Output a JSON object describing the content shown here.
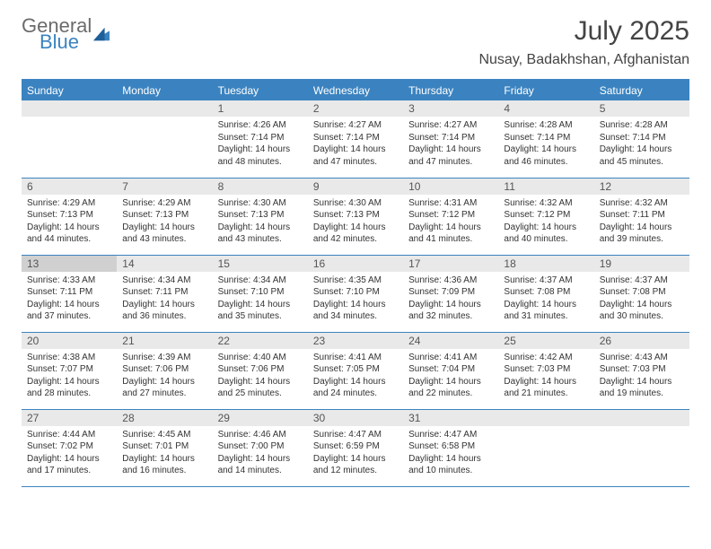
{
  "brand": {
    "general": "General",
    "blue": "Blue"
  },
  "title": "July 2025",
  "location": "Nusay, Badakhshan, Afghanistan",
  "colors": {
    "accent": "#3b83c0",
    "header_text": "#ffffff",
    "daynum_bg": "#e9e9e9",
    "daynum_hl_bg": "#d0d0d0"
  },
  "fonts": {
    "title_size": 30,
    "location_size": 16,
    "dayheader_size": 12,
    "cell_size": 10
  },
  "day_headers": [
    "Sunday",
    "Monday",
    "Tuesday",
    "Wednesday",
    "Thursday",
    "Friday",
    "Saturday"
  ],
  "weeks": [
    [
      null,
      null,
      {
        "n": "1",
        "sr": "4:26 AM",
        "ss": "7:14 PM",
        "dl": "14 hours and 48 minutes."
      },
      {
        "n": "2",
        "sr": "4:27 AM",
        "ss": "7:14 PM",
        "dl": "14 hours and 47 minutes."
      },
      {
        "n": "3",
        "sr": "4:27 AM",
        "ss": "7:14 PM",
        "dl": "14 hours and 47 minutes."
      },
      {
        "n": "4",
        "sr": "4:28 AM",
        "ss": "7:14 PM",
        "dl": "14 hours and 46 minutes."
      },
      {
        "n": "5",
        "sr": "4:28 AM",
        "ss": "7:14 PM",
        "dl": "14 hours and 45 minutes."
      }
    ],
    [
      {
        "n": "6",
        "sr": "4:29 AM",
        "ss": "7:13 PM",
        "dl": "14 hours and 44 minutes."
      },
      {
        "n": "7",
        "sr": "4:29 AM",
        "ss": "7:13 PM",
        "dl": "14 hours and 43 minutes."
      },
      {
        "n": "8",
        "sr": "4:30 AM",
        "ss": "7:13 PM",
        "dl": "14 hours and 43 minutes."
      },
      {
        "n": "9",
        "sr": "4:30 AM",
        "ss": "7:13 PM",
        "dl": "14 hours and 42 minutes."
      },
      {
        "n": "10",
        "sr": "4:31 AM",
        "ss": "7:12 PM",
        "dl": "14 hours and 41 minutes."
      },
      {
        "n": "11",
        "sr": "4:32 AM",
        "ss": "7:12 PM",
        "dl": "14 hours and 40 minutes."
      },
      {
        "n": "12",
        "sr": "4:32 AM",
        "ss": "7:11 PM",
        "dl": "14 hours and 39 minutes."
      }
    ],
    [
      {
        "n": "13",
        "sr": "4:33 AM",
        "ss": "7:11 PM",
        "dl": "14 hours and 37 minutes.",
        "hl": true
      },
      {
        "n": "14",
        "sr": "4:34 AM",
        "ss": "7:11 PM",
        "dl": "14 hours and 36 minutes."
      },
      {
        "n": "15",
        "sr": "4:34 AM",
        "ss": "7:10 PM",
        "dl": "14 hours and 35 minutes."
      },
      {
        "n": "16",
        "sr": "4:35 AM",
        "ss": "7:10 PM",
        "dl": "14 hours and 34 minutes."
      },
      {
        "n": "17",
        "sr": "4:36 AM",
        "ss": "7:09 PM",
        "dl": "14 hours and 32 minutes."
      },
      {
        "n": "18",
        "sr": "4:37 AM",
        "ss": "7:08 PM",
        "dl": "14 hours and 31 minutes."
      },
      {
        "n": "19",
        "sr": "4:37 AM",
        "ss": "7:08 PM",
        "dl": "14 hours and 30 minutes."
      }
    ],
    [
      {
        "n": "20",
        "sr": "4:38 AM",
        "ss": "7:07 PM",
        "dl": "14 hours and 28 minutes."
      },
      {
        "n": "21",
        "sr": "4:39 AM",
        "ss": "7:06 PM",
        "dl": "14 hours and 27 minutes."
      },
      {
        "n": "22",
        "sr": "4:40 AM",
        "ss": "7:06 PM",
        "dl": "14 hours and 25 minutes."
      },
      {
        "n": "23",
        "sr": "4:41 AM",
        "ss": "7:05 PM",
        "dl": "14 hours and 24 minutes."
      },
      {
        "n": "24",
        "sr": "4:41 AM",
        "ss": "7:04 PM",
        "dl": "14 hours and 22 minutes."
      },
      {
        "n": "25",
        "sr": "4:42 AM",
        "ss": "7:03 PM",
        "dl": "14 hours and 21 minutes."
      },
      {
        "n": "26",
        "sr": "4:43 AM",
        "ss": "7:03 PM",
        "dl": "14 hours and 19 minutes."
      }
    ],
    [
      {
        "n": "27",
        "sr": "4:44 AM",
        "ss": "7:02 PM",
        "dl": "14 hours and 17 minutes."
      },
      {
        "n": "28",
        "sr": "4:45 AM",
        "ss": "7:01 PM",
        "dl": "14 hours and 16 minutes."
      },
      {
        "n": "29",
        "sr": "4:46 AM",
        "ss": "7:00 PM",
        "dl": "14 hours and 14 minutes."
      },
      {
        "n": "30",
        "sr": "4:47 AM",
        "ss": "6:59 PM",
        "dl": "14 hours and 12 minutes."
      },
      {
        "n": "31",
        "sr": "4:47 AM",
        "ss": "6:58 PM",
        "dl": "14 hours and 10 minutes."
      },
      null,
      null
    ]
  ],
  "labels": {
    "sunrise": "Sunrise:",
    "sunset": "Sunset:",
    "daylight": "Daylight:"
  }
}
